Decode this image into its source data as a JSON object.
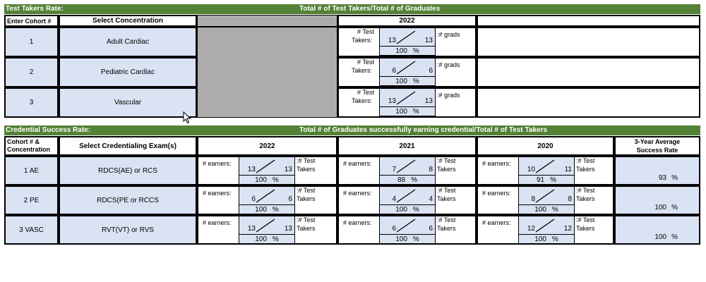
{
  "test_takers": {
    "bar_left": "Test Takers Rate:",
    "bar_center": "Total # of Test Takers/Total # of Graduates",
    "col_cohort": "Enter Cohort #",
    "col_concentration": "Select Concentration",
    "col_year": "2022",
    "label_takers_a": "# Test",
    "label_takers_b": "Takers:",
    "label_grads": ":# grads",
    "pct_sign": "%",
    "rows": [
      {
        "cohort": "1",
        "concentration": "Adult Cardiac",
        "num": "13",
        "den": "13",
        "pct": "100"
      },
      {
        "cohort": "2",
        "concentration": "Pediatric Cardiac",
        "num": "6",
        "den": "6",
        "pct": "100"
      },
      {
        "cohort": "3",
        "concentration": "Vascular",
        "num": "13",
        "den": "13",
        "pct": "100"
      }
    ]
  },
  "credential": {
    "bar_left": "Credential Success Rate:",
    "bar_center": "Total # of Graduates successfully earning credential/Total # of Test Takers",
    "col_cohort_a": "Cohort # &",
    "col_cohort_b": "Concentration",
    "col_exam": "Select Credentialing Exam(s)",
    "years": [
      "2022",
      "2021",
      "2020"
    ],
    "col_avg_a": "3-Year Average",
    "col_avg_b": "Success Rate",
    "label_earners": "# earners:",
    "label_after_a": ":# Test",
    "label_after_b": "Takers",
    "pct_sign": "%",
    "rows": [
      {
        "cohort": "1 AE",
        "exam": "RDCS(AE) or RCS",
        "avg": "93",
        "years": [
          {
            "num": "13",
            "den": "13",
            "pct": "100"
          },
          {
            "num": "7",
            "den": "8",
            "pct": "88"
          },
          {
            "num": "10",
            "den": "11",
            "pct": "91"
          }
        ]
      },
      {
        "cohort": "2 PE",
        "exam": "RDCS(PE or RCCS",
        "avg": "100",
        "years": [
          {
            "num": "6",
            "den": "6",
            "pct": "100"
          },
          {
            "num": "4",
            "den": "4",
            "pct": "100"
          },
          {
            "num": "8",
            "den": "8",
            "pct": "100"
          }
        ]
      },
      {
        "cohort": "3 VASC",
        "exam": "RVT(VT) or RVS",
        "avg": "100",
        "years": [
          {
            "num": "13",
            "den": "13",
            "pct": "100"
          },
          {
            "num": "6",
            "den": "6",
            "pct": "100"
          },
          {
            "num": "12",
            "den": "12",
            "pct": "100"
          }
        ]
      }
    ]
  }
}
